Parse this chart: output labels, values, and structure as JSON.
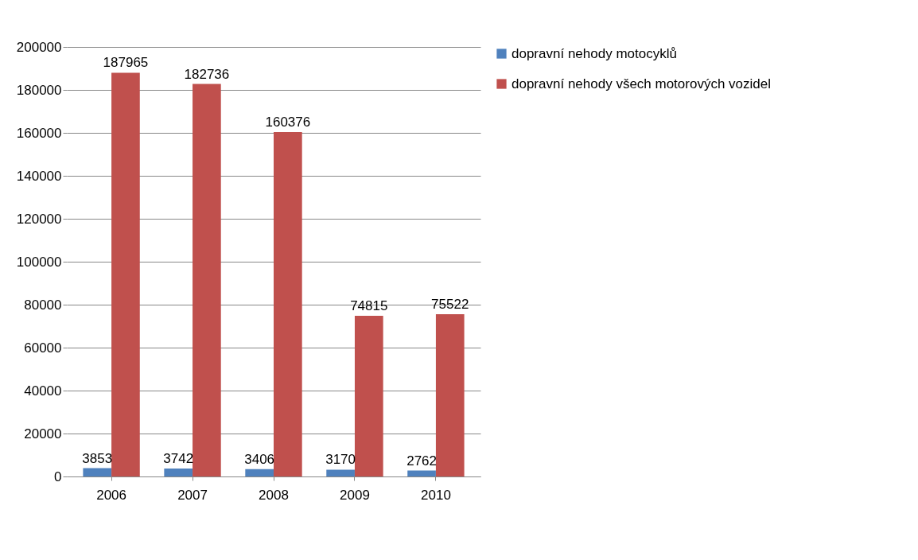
{
  "chart_data": {
    "type": "bar",
    "categories": [
      "2006",
      "2007",
      "2008",
      "2009",
      "2010"
    ],
    "series": [
      {
        "name": "dopravní nehody motocyklů",
        "color": "#4f81bd",
        "values": [
          3853,
          3742,
          3406,
          3170,
          2762
        ]
      },
      {
        "name": "dopravní nehody všech motorových vozidel",
        "color": "#c0504d",
        "values": [
          187965,
          182736,
          160376,
          74815,
          75522
        ]
      }
    ],
    "ylim": [
      0,
      200000
    ],
    "yticks": [
      0,
      20000,
      40000,
      60000,
      80000,
      100000,
      120000,
      140000,
      160000,
      180000,
      200000
    ],
    "grid": "y",
    "legend": "right",
    "data_labels": true
  }
}
